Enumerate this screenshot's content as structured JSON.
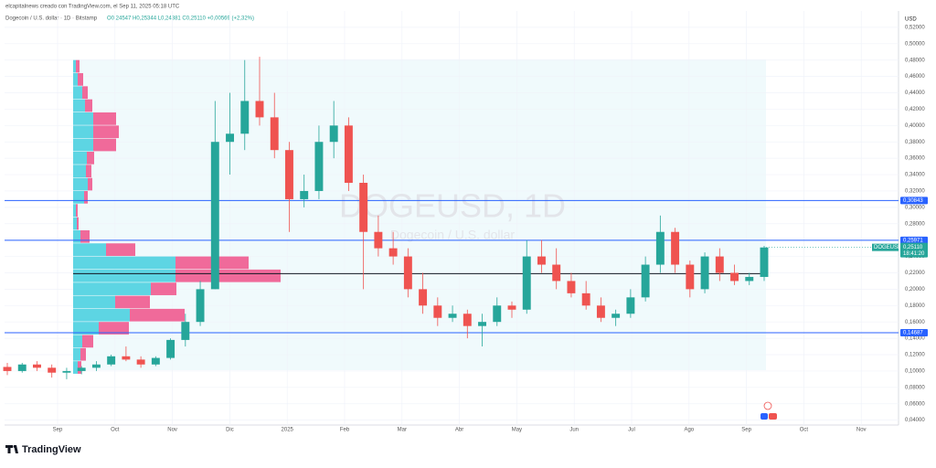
{
  "chart_data": {
    "type": "candlestick",
    "subtitle": "elcapitalnews creado con TradingView.com, el Sep 11, 2025 05:18 UTC",
    "title": "Dogecoin / U.S. dollar · 1D · Bitstamp",
    "ohlc_text": "O0,24547 H0,25344 L0,24381 C0,25110 +0,00569 (+2,32%)",
    "watermark": "DOGEUSD, 1D",
    "watermark_sub": "Dogecoin / U.S. dollar",
    "y_axis_label": "USD",
    "brand": "TradingView",
    "up_color": "#26a69a",
    "down_color": "#ef5350",
    "x_labels": [
      "Sep",
      "Oct",
      "Nov",
      "Dic",
      "2025",
      "Feb",
      "Mar",
      "Abr",
      "May",
      "Jun",
      "Jul",
      "Ago",
      "Sep",
      "Oct",
      "Nov"
    ],
    "ohlc": [
      [
        0.105,
        0.11,
        0.095,
        0.1
      ],
      [
        0.1,
        0.11,
        0.098,
        0.108
      ],
      [
        0.108,
        0.112,
        0.1,
        0.104
      ],
      [
        0.104,
        0.108,
        0.092,
        0.098
      ],
      [
        0.098,
        0.104,
        0.09,
        0.1
      ],
      [
        0.1,
        0.106,
        0.096,
        0.104
      ],
      [
        0.104,
        0.112,
        0.1,
        0.108
      ],
      [
        0.108,
        0.12,
        0.106,
        0.118
      ],
      [
        0.118,
        0.13,
        0.112,
        0.114
      ],
      [
        0.114,
        0.118,
        0.104,
        0.108
      ],
      [
        0.108,
        0.118,
        0.106,
        0.116
      ],
      [
        0.116,
        0.14,
        0.114,
        0.138
      ],
      [
        0.138,
        0.17,
        0.13,
        0.16
      ],
      [
        0.16,
        0.21,
        0.155,
        0.2
      ],
      [
        0.2,
        0.43,
        0.2,
        0.38
      ],
      [
        0.38,
        0.44,
        0.34,
        0.39
      ],
      [
        0.39,
        0.48,
        0.37,
        0.43
      ],
      [
        0.43,
        0.484,
        0.4,
        0.41
      ],
      [
        0.41,
        0.44,
        0.36,
        0.37
      ],
      [
        0.37,
        0.38,
        0.27,
        0.31
      ],
      [
        0.31,
        0.34,
        0.3,
        0.32
      ],
      [
        0.32,
        0.4,
        0.31,
        0.38
      ],
      [
        0.38,
        0.43,
        0.36,
        0.4
      ],
      [
        0.4,
        0.41,
        0.32,
        0.33
      ],
      [
        0.33,
        0.34,
        0.2,
        0.27
      ],
      [
        0.27,
        0.29,
        0.24,
        0.25
      ],
      [
        0.25,
        0.27,
        0.23,
        0.24
      ],
      [
        0.24,
        0.25,
        0.19,
        0.2
      ],
      [
        0.2,
        0.22,
        0.17,
        0.18
      ],
      [
        0.18,
        0.19,
        0.155,
        0.165
      ],
      [
        0.165,
        0.18,
        0.16,
        0.17
      ],
      [
        0.17,
        0.175,
        0.14,
        0.155
      ],
      [
        0.155,
        0.17,
        0.13,
        0.16
      ],
      [
        0.16,
        0.19,
        0.155,
        0.18
      ],
      [
        0.18,
        0.185,
        0.165,
        0.175
      ],
      [
        0.175,
        0.26,
        0.17,
        0.24
      ],
      [
        0.24,
        0.26,
        0.22,
        0.23
      ],
      [
        0.23,
        0.25,
        0.2,
        0.21
      ],
      [
        0.21,
        0.22,
        0.19,
        0.195
      ],
      [
        0.195,
        0.21,
        0.175,
        0.18
      ],
      [
        0.18,
        0.19,
        0.16,
        0.165
      ],
      [
        0.165,
        0.175,
        0.155,
        0.17
      ],
      [
        0.17,
        0.2,
        0.165,
        0.19
      ],
      [
        0.19,
        0.24,
        0.185,
        0.23
      ],
      [
        0.23,
        0.29,
        0.22,
        0.27
      ],
      [
        0.27,
        0.275,
        0.22,
        0.23
      ],
      [
        0.23,
        0.235,
        0.19,
        0.2
      ],
      [
        0.2,
        0.245,
        0.195,
        0.24
      ],
      [
        0.24,
        0.25,
        0.21,
        0.22
      ],
      [
        0.22,
        0.23,
        0.205,
        0.21
      ],
      [
        0.21,
        0.22,
        0.205,
        0.215
      ],
      [
        0.215,
        0.253,
        0.21,
        0.251
      ]
    ],
    "ylim": [
      0.034,
      0.54
    ],
    "yticks": [
      {
        "value": 0.04,
        "label": "0,04000"
      },
      {
        "value": 0.06,
        "label": "0,06000"
      },
      {
        "value": 0.08,
        "label": "0,08000"
      },
      {
        "value": 0.1,
        "label": "0,10000"
      },
      {
        "value": 0.12,
        "label": "0,12000"
      },
      {
        "value": 0.14,
        "label": "0,14000"
      },
      {
        "value": 0.16,
        "label": "0,16000"
      },
      {
        "value": 0.18,
        "label": "0,18000"
      },
      {
        "value": 0.2,
        "label": "0,20000"
      },
      {
        "value": 0.22,
        "label": "0,22000"
      },
      {
        "value": 0.24,
        "label": "0,24000"
      },
      {
        "value": 0.26,
        "label": "0,26000"
      },
      {
        "value": 0.28,
        "label": "0,28000"
      },
      {
        "value": 0.3,
        "label": "0,30000"
      },
      {
        "value": 0.32,
        "label": "0,32000"
      },
      {
        "value": 0.34,
        "label": "0,34000"
      },
      {
        "value": 0.36,
        "label": "0,36000"
      },
      {
        "value": 0.38,
        "label": "0,38000"
      },
      {
        "value": 0.4,
        "label": "0,40000"
      },
      {
        "value": 0.42,
        "label": "0,42000"
      },
      {
        "value": 0.44,
        "label": "0,44000"
      },
      {
        "value": 0.46,
        "label": "0,46000"
      },
      {
        "value": 0.48,
        "label": "0,48000"
      },
      {
        "value": 0.5,
        "label": "0,50000"
      },
      {
        "value": 0.52,
        "label": "0,52000"
      }
    ],
    "grid": true,
    "levels": [
      {
        "value": 0.30843,
        "label": "0,30843"
      },
      {
        "value": 0.25971,
        "label": "0,25971"
      },
      {
        "value": 0.14687,
        "label": "0,14687"
      }
    ],
    "level_color": "#2962ff",
    "poc_line": 0.219,
    "last": {
      "symbol": "DOGEUSD",
      "value": 0.2511,
      "label": "0,25110",
      "countdown": "18:41:20"
    },
    "volume_profile": {
      "buy_color": "#5dd5e3",
      "sell_color": "#f06a9a",
      "rows": [
        [
          0.096,
          5,
          4
        ],
        [
          0.112,
          8,
          6
        ],
        [
          0.128,
          10,
          12
        ],
        [
          0.144,
          28,
          33
        ],
        [
          0.16,
          62,
          60
        ],
        [
          0.176,
          46,
          38
        ],
        [
          0.192,
          85,
          28
        ],
        [
          0.208,
          112,
          115
        ],
        [
          0.224,
          112,
          80
        ],
        [
          0.24,
          36,
          32
        ],
        [
          0.256,
          8,
          10
        ],
        [
          0.272,
          4,
          2
        ],
        [
          0.288,
          3,
          2
        ],
        [
          0.304,
          12,
          4
        ],
        [
          0.32,
          16,
          5
        ],
        [
          0.336,
          14,
          6
        ],
        [
          0.352,
          15,
          8
        ],
        [
          0.368,
          22,
          25
        ],
        [
          0.384,
          22,
          28
        ],
        [
          0.4,
          22,
          25
        ],
        [
          0.416,
          13,
          8
        ],
        [
          0.432,
          10,
          6
        ],
        [
          0.448,
          5,
          6
        ],
        [
          0.464,
          3,
          4
        ]
      ]
    }
  }
}
